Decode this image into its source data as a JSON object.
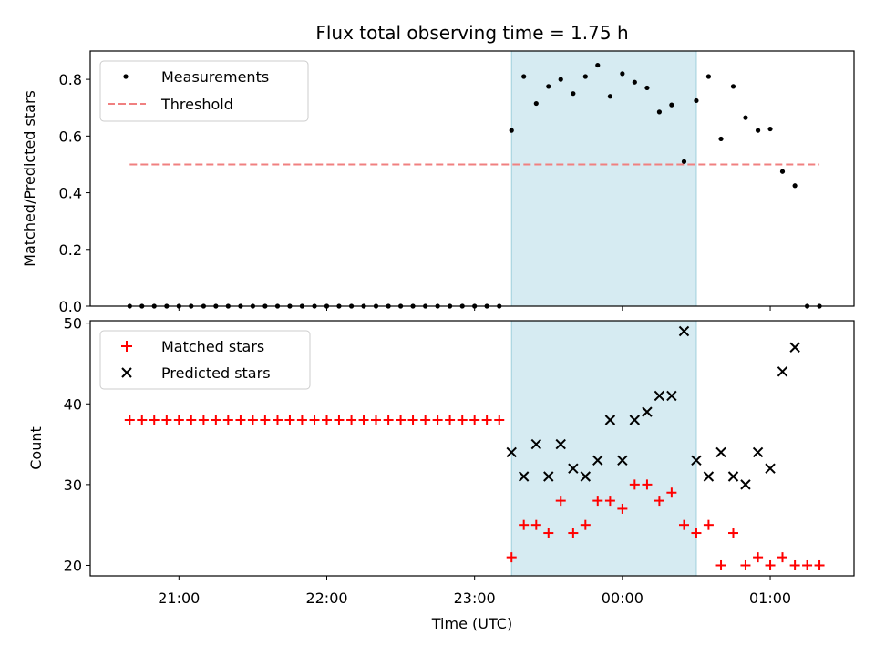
{
  "chart_data": [
    {
      "type": "scatter",
      "title": "Flux total observing time = 1.75 h",
      "xlabel": "",
      "ylabel": "Matched/Predicted stars",
      "ylim": [
        0,
        0.9
      ],
      "yticks": [
        0.0,
        0.2,
        0.4,
        0.6,
        0.8
      ],
      "ytick_labels": [
        "0.0",
        "0.2",
        "0.4",
        "0.6",
        "0.8"
      ],
      "legend": {
        "position": "top-left",
        "entries": [
          "Measurements",
          "Threshold"
        ]
      },
      "shaded_region": {
        "x_start_hours": 23.25,
        "x_end_hours": 24.5,
        "color": "#add8e6"
      },
      "threshold": {
        "y": 0.5,
        "x_start_hours": 20.667,
        "x_end_hours": 25.333,
        "color": "#f08080"
      },
      "series": [
        {
          "name": "Measurements",
          "color": "#000000",
          "marker": "dot",
          "x_hours": [
            20.667,
            20.75,
            20.833,
            20.917,
            21.0,
            21.083,
            21.167,
            21.25,
            21.333,
            21.417,
            21.5,
            21.583,
            21.667,
            21.75,
            21.833,
            21.917,
            22.0,
            22.083,
            22.167,
            22.25,
            22.333,
            22.417,
            22.5,
            22.583,
            22.667,
            22.75,
            22.833,
            22.917,
            23.0,
            23.083,
            23.167,
            23.25,
            23.333,
            23.417,
            23.5,
            23.583,
            23.667,
            23.75,
            23.833,
            23.917,
            24.0,
            24.083,
            24.167,
            24.25,
            24.333,
            24.417,
            24.5,
            24.583,
            24.667,
            24.75,
            24.833,
            24.917,
            25.0,
            25.083,
            25.167,
            25.25,
            25.333
          ],
          "y": [
            0,
            0,
            0,
            0,
            0,
            0,
            0,
            0,
            0,
            0,
            0,
            0,
            0,
            0,
            0,
            0,
            0,
            0,
            0,
            0,
            0,
            0,
            0,
            0,
            0,
            0,
            0,
            0,
            0,
            0,
            0,
            0.62,
            0.81,
            0.715,
            0.775,
            0.8,
            0.75,
            0.81,
            0.85,
            0.74,
            0.82,
            0.79,
            0.77,
            0.685,
            0.71,
            0.51,
            0.725,
            0.81,
            0.59,
            0.775,
            0.665,
            0.62,
            0.625,
            0.475,
            0.425,
            0,
            0
          ],
          "x_hours_override": [
            20.667,
            20.75,
            20.833,
            20.917,
            21.0,
            21.083,
            21.167,
            21.25,
            21.333,
            21.417,
            21.5,
            21.583,
            21.667,
            21.75,
            21.833,
            21.917,
            22.0,
            22.083,
            22.167,
            22.25,
            22.333,
            22.417,
            22.5,
            22.583,
            22.667,
            22.75,
            22.833,
            22.917,
            23.0,
            23.083,
            23.167,
            23.25,
            23.333,
            23.417,
            23.5,
            23.583,
            23.667,
            23.75,
            23.833,
            23.917,
            24.0,
            24.083,
            24.167,
            24.25,
            24.333,
            24.417,
            24.5,
            24.583,
            24.667,
            24.75,
            24.833,
            24.917,
            25.0,
            25.083,
            25.167,
            25.25,
            25.333
          ]
        }
      ]
    },
    {
      "type": "scatter",
      "title": "",
      "xlabel": "Time (UTC)",
      "ylabel": "Count",
      "ylim": [
        18.7,
        50.3
      ],
      "yticks": [
        20,
        30,
        40,
        50
      ],
      "ytick_labels": [
        "20",
        "30",
        "40",
        "50"
      ],
      "xticks_hours": [
        21,
        22,
        23,
        24,
        25
      ],
      "xtick_labels": [
        "21:00",
        "22:00",
        "23:00",
        "00:00",
        "01:00"
      ],
      "xlim_hours": [
        20.4,
        25.567
      ],
      "legend": {
        "position": "top-left",
        "entries": [
          "Matched stars",
          "Predicted stars"
        ]
      },
      "shaded_region": {
        "x_start_hours": 23.25,
        "x_end_hours": 24.5,
        "color": "#add8e6"
      },
      "series": [
        {
          "name": "Matched stars",
          "color": "#ff0000",
          "marker": "plus",
          "x_hours": [
            20.667,
            20.75,
            20.833,
            20.917,
            21.0,
            21.083,
            21.167,
            21.25,
            21.333,
            21.417,
            21.5,
            21.583,
            21.667,
            21.75,
            21.833,
            21.917,
            22.0,
            22.083,
            22.167,
            22.25,
            22.333,
            22.417,
            22.5,
            22.583,
            22.667,
            22.75,
            22.833,
            22.917,
            23.0,
            23.083,
            23.167,
            23.25,
            23.333,
            23.417,
            23.5,
            23.583,
            23.667,
            23.75,
            23.833,
            23.917,
            24.0,
            24.083,
            24.167,
            24.25,
            24.333,
            24.417,
            24.5,
            24.583,
            24.667,
            24.75,
            24.833,
            24.917,
            25.0,
            25.083,
            25.167,
            25.25,
            25.333
          ],
          "y": [
            38,
            38,
            38,
            38,
            38,
            38,
            38,
            38,
            38,
            38,
            38,
            38,
            38,
            38,
            38,
            38,
            38,
            38,
            38,
            38,
            38,
            38,
            38,
            38,
            38,
            38,
            38,
            38,
            38,
            38,
            38,
            21,
            25,
            25,
            24,
            28,
            24,
            25,
            28,
            28,
            27,
            30,
            30,
            28,
            29,
            25,
            24,
            25,
            20,
            24,
            20,
            21,
            20,
            21,
            20,
            20,
            20
          ]
        },
        {
          "name": "Predicted stars",
          "color": "#000000",
          "marker": "x",
          "x_hours": [
            23.25,
            23.333,
            23.417,
            23.5,
            23.583,
            23.667,
            23.75,
            23.833,
            23.917,
            24.0,
            24.083,
            24.167,
            24.25,
            24.333,
            24.417,
            24.5,
            24.583,
            24.667,
            24.75,
            24.833,
            24.917,
            25.0,
            25.083,
            25.167
          ],
          "y": [
            34,
            31,
            35,
            31,
            35,
            32,
            31,
            33,
            38,
            33,
            38,
            39,
            41,
            41,
            49,
            33,
            31,
            34,
            31,
            30,
            34,
            32,
            44,
            47
          ]
        }
      ]
    }
  ]
}
